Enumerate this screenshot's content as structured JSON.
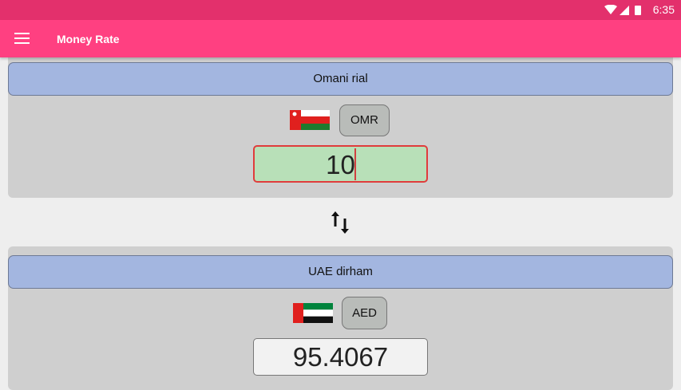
{
  "status_bar": {
    "time": "6:35"
  },
  "app_bar": {
    "title": "Money Rate"
  },
  "from": {
    "currency_name": "Omani rial",
    "code": "OMR",
    "amount": "10"
  },
  "to": {
    "currency_name": "UAE dirham",
    "code": "AED",
    "amount": "95.4067"
  },
  "colors": {
    "status_bar": "#e3306c",
    "app_bar": "#ff4081",
    "header": "#a3b6e0",
    "input_bg": "#b8e0b8",
    "input_border": "#e03c3c"
  }
}
